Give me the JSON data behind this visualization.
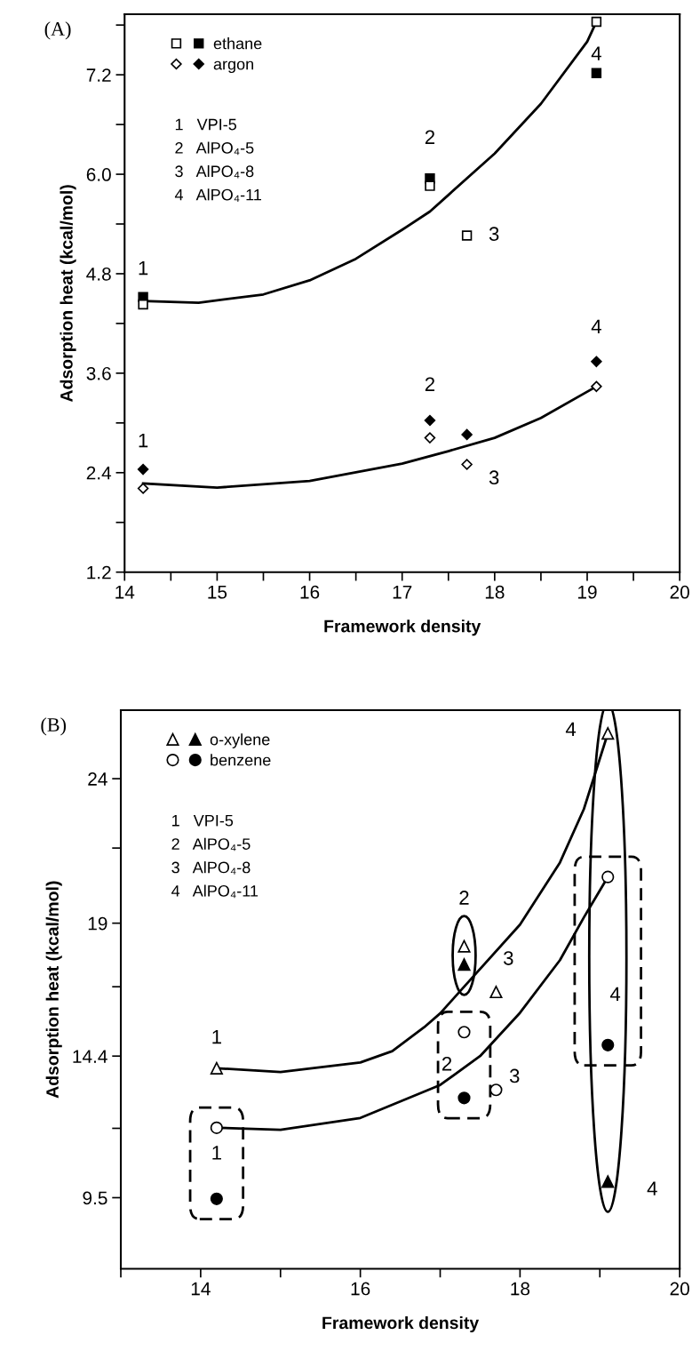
{
  "chart_data": [
    {
      "type": "scatter",
      "title": "(A)",
      "xlabel": "Framework density",
      "ylabel": "Adsorption heat (kcal/mol)",
      "xlim": [
        14,
        20
      ],
      "ylim": [
        1.2,
        7.93
      ],
      "xticks": [
        14,
        {
          "value": 14.5,
          "label": null
        },
        15,
        {
          "value": 15.5,
          "label": null
        },
        16,
        {
          "value": 16.5,
          "label": null
        },
        17,
        {
          "value": 17.5,
          "label": null
        },
        18,
        {
          "value": 18.5,
          "label": null
        },
        19,
        {
          "value": 19.5,
          "label": null
        },
        20
      ],
      "yticks": [
        1.2,
        {
          "value": 1.8,
          "label": null
        },
        2.4,
        {
          "value": 3.0,
          "label": null
        },
        3.6,
        {
          "value": 4.2,
          "label": null
        },
        4.8,
        {
          "value": 5.4,
          "label": null
        },
        {
          "value": 6,
          "label": "6.0"
        },
        {
          "value": 6.6,
          "label": null
        },
        7.2,
        {
          "value": 7.8,
          "label": null
        }
      ],
      "legend": "top left",
      "series": [
        {
          "color": "#ffffff",
          "marker": "square",
          "x": [
            14.2,
            17.3,
            17.7,
            19.1
          ],
          "values": [
            4.43,
            5.86,
            5.26,
            7.84
          ]
        },
        {
          "name": "ethane",
          "color": "#000000",
          "marker": "square",
          "x": [
            14.2,
            17.3,
            19.1
          ],
          "values": [
            4.52,
            5.95,
            7.22
          ]
        },
        {
          "color": "#ffffff",
          "marker": "diamond",
          "x": [
            14.2,
            17.3,
            17.7,
            19.1
          ],
          "values": [
            2.21,
            2.82,
            2.5,
            3.44
          ]
        },
        {
          "name": "argon",
          "color": "#000000",
          "marker": "diamond",
          "x": [
            14.2,
            17.3,
            17.7,
            19.1
          ],
          "values": [
            2.44,
            3.03,
            2.86,
            3.74
          ]
        },
        {
          "type": "line",
          "color": "#000000",
          "marker": "none",
          "x": [
            14.2,
            14.8,
            15.5,
            16,
            16.5,
            17,
            17.3,
            17.5,
            18,
            18.5,
            19,
            19.1
          ],
          "values": [
            4.47,
            4.45,
            4.55,
            4.72,
            4.98,
            5.33,
            5.55,
            5.75,
            6.25,
            6.85,
            7.6,
            7.84
          ]
        },
        {
          "type": "line",
          "color": "#000000",
          "marker": "none",
          "x": [
            14.2,
            15,
            16,
            17,
            17.5,
            18,
            18.5,
            19.1
          ],
          "values": [
            2.27,
            2.22,
            2.3,
            2.51,
            2.66,
            2.82,
            3.06,
            3.44
          ]
        }
      ],
      "annotations": [
        "1   VPI-5",
        "2   AlPO₄-5",
        "3   AlPO₄-8",
        "4   AlPO₄-11",
        {
          "text": "1",
          "x": 14.2,
          "y": 4.52
        },
        {
          "text": "2",
          "x": 17.3,
          "y": 5.95
        },
        {
          "text": "3",
          "x": 17.7,
          "y": 5.26
        },
        {
          "text": "4",
          "x": 19.1,
          "y": 7.84
        },
        {
          "text": "1",
          "x": 14.2,
          "y": 2.44
        },
        {
          "text": "2",
          "x": 17.3,
          "y": 3.03
        },
        {
          "text": "3",
          "x": 17.7,
          "y": 2.5
        },
        {
          "text": "4",
          "x": 19.1,
          "y": 3.74
        }
      ]
    },
    {
      "type": "scatter",
      "title": "(B)",
      "xlabel": "Framework density",
      "ylabel": "Adsorption heat (kcal/mol)",
      "xlim": [
        13,
        20
      ],
      "ylim": [
        7.04,
        26.37
      ],
      "xticks": [
        {
          "value": 13,
          "label": null
        },
        14,
        {
          "value": 15,
          "label": null
        },
        16,
        {
          "value": 17,
          "label": null
        },
        18,
        {
          "value": 19,
          "label": null
        },
        20
      ],
      "yticks": [
        9.5,
        {
          "value": 11.9,
          "label": null
        },
        14.4,
        {
          "value": 16.8,
          "label": null
        },
        19,
        {
          "value": 21.6,
          "label": null
        },
        24
      ],
      "legend": "top left",
      "series": [
        {
          "color": "#ffffff",
          "marker": "triangle",
          "x": [
            14.2,
            17.3,
            17.7,
            19.1
          ],
          "values": [
            13.98,
            18.2,
            16.62,
            25.57
          ]
        },
        {
          "name": "o-xylene",
          "color": "#000000",
          "marker": "triangle",
          "x": [
            17.3,
            19.1
          ],
          "values": [
            17.57,
            10.06
          ]
        },
        {
          "color": "#ffffff",
          "marker": "circle",
          "x": [
            14.2,
            17.3,
            17.7,
            19.1
          ],
          "values": [
            11.92,
            15.23,
            13.23,
            20.6
          ]
        },
        {
          "name": "benzene",
          "color": "#000000",
          "marker": "circle",
          "x": [
            14.2,
            17.3,
            19.1
          ],
          "values": [
            9.46,
            12.95,
            14.78
          ]
        },
        {
          "type": "line",
          "color": "#000000",
          "marker": "none",
          "x": [
            14.2,
            15,
            16,
            16.4,
            16.8,
            17,
            17.3,
            18,
            18.5,
            18.8,
            19.1
          ],
          "values": [
            13.98,
            13.85,
            14.18,
            14.57,
            15.4,
            15.88,
            16.8,
            18.95,
            21.1,
            22.95,
            25.57
          ]
        },
        {
          "type": "line",
          "color": "#000000",
          "marker": "none",
          "x": [
            14.2,
            15,
            16,
            17,
            17.5,
            18,
            18.5,
            18.8,
            19.1
          ],
          "values": [
            11.92,
            11.85,
            12.26,
            13.4,
            14.4,
            15.9,
            17.72,
            19.2,
            20.6
          ]
        }
      ],
      "annotations": [
        "1   VPI-5",
        "2   AlPO₄-5",
        "3   AlPO₄-8",
        "4   AlPO₄-11",
        {
          "text": "1",
          "x": 14.2,
          "y": 13.98
        },
        {
          "text": "2",
          "x": 17.3,
          "y": 18.2
        },
        {
          "text": "3",
          "x": 17.7,
          "y": 16.62
        },
        {
          "text": "4",
          "x": 19.1,
          "y": 25.57
        },
        {
          "text": "4",
          "x": 19.1,
          "y": 10.06
        },
        {
          "text": "1",
          "x": 14.2,
          "y": 9.46
        },
        {
          "text": "2",
          "x": 17.3,
          "y": 15.23
        },
        {
          "text": "3",
          "x": 17.7,
          "y": 13.23
        },
        {
          "text": "4",
          "x": 19.1,
          "y": 14.78
        }
      ]
    }
  ]
}
